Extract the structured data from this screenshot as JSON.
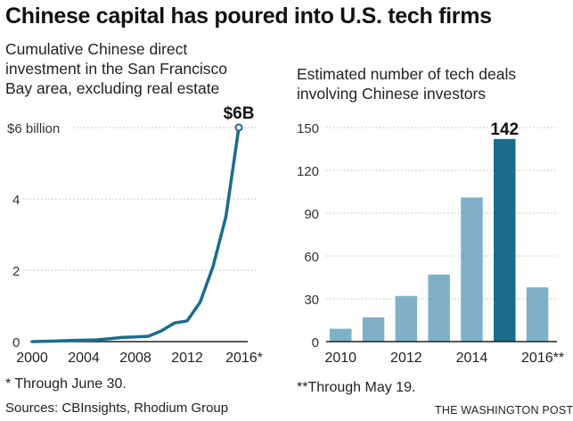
{
  "title": "Chinese capital has poured into U.S. tech firms",
  "chart_data": [
    {
      "type": "line",
      "subtitle_lines": [
        "Cumulative Chinese direct",
        "investment in the San Francisco",
        "Bay area, excluding real estate"
      ],
      "x": [
        2000,
        2001,
        2002,
        2003,
        2004,
        2005,
        2006,
        2007,
        2008,
        2009,
        2010,
        2011,
        2012,
        2013,
        2014,
        2015,
        2016
      ],
      "values": [
        0.0,
        0.01,
        0.02,
        0.03,
        0.04,
        0.05,
        0.08,
        0.12,
        0.13,
        0.15,
        0.3,
        0.52,
        0.58,
        1.1,
        2.1,
        3.5,
        6.0
      ],
      "yticks": [
        {
          "value": 6,
          "label": "$6 billion"
        },
        {
          "value": 4,
          "label": "4"
        },
        {
          "value": 2,
          "label": "2"
        },
        {
          "value": 0,
          "label": "0"
        }
      ],
      "xticks": [
        {
          "value": 2000,
          "label": "2000"
        },
        {
          "value": 2004,
          "label": "2004"
        },
        {
          "value": 2008,
          "label": "2008"
        },
        {
          "value": 2012,
          "label": "2012"
        },
        {
          "value": 2016,
          "label": "2016*"
        }
      ],
      "ylim": [
        0,
        6
      ],
      "xlim": [
        2000,
        2016
      ],
      "end_label": "$6B",
      "footnote": "* Through June 30.",
      "color": "#1b6c8c"
    },
    {
      "type": "bar",
      "subtitle_lines": [
        "Estimated number of tech deals",
        "involving Chinese investors"
      ],
      "categories": [
        "2010",
        "2011",
        "2012",
        "2013",
        "2014",
        "2015",
        "2016**"
      ],
      "values": [
        9,
        17,
        32,
        47,
        101,
        142,
        38
      ],
      "xtick_labels": [
        {
          "index": 0,
          "label": "2010"
        },
        {
          "index": 2,
          "label": "2012"
        },
        {
          "index": 4,
          "label": "2014"
        },
        {
          "index": 6,
          "label": "2016**"
        }
      ],
      "yticks": [
        150,
        120,
        90,
        60,
        30,
        0
      ],
      "ylim": [
        0,
        150
      ],
      "highlight_index": 5,
      "highlight_label": "142",
      "footnote": "**Through May 19.",
      "bar_color": "#7fb0c8",
      "highlight_color": "#1b6c8c"
    }
  ],
  "sources": "Sources: CBInsights, Rhodium Group",
  "credit": "THE WASHINGTON POST"
}
